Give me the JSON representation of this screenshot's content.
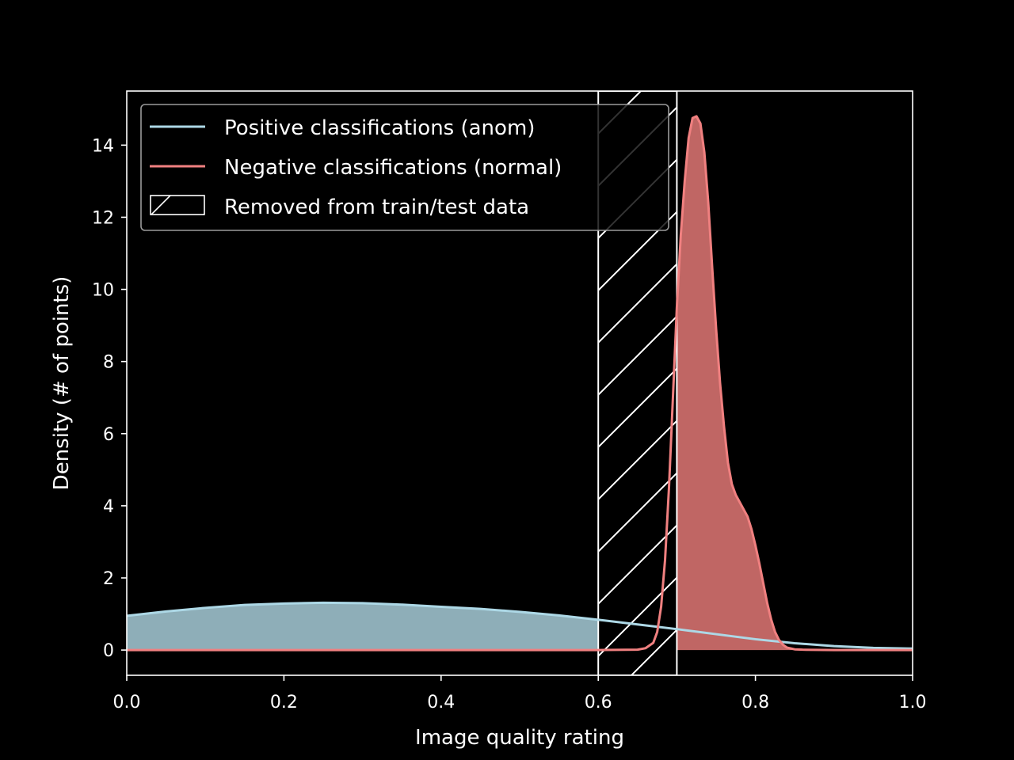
{
  "chart_data": {
    "type": "area",
    "title": "",
    "xlabel": "Image quality rating",
    "ylabel": "Density (# of points)",
    "xlim": [
      0.0,
      1.0
    ],
    "ylim": [
      -0.7,
      15.5
    ],
    "xticks": [
      0.0,
      0.2,
      0.4,
      0.6,
      0.8,
      1.0
    ],
    "xtick_labels": [
      "0.0",
      "0.2",
      "0.4",
      "0.6",
      "0.8",
      "1.0"
    ],
    "yticks": [
      0,
      2,
      4,
      6,
      8,
      10,
      12,
      14
    ],
    "ytick_labels": [
      "0",
      "2",
      "4",
      "6",
      "8",
      "10",
      "12",
      "14"
    ],
    "grid": false,
    "legend_position": "top-left",
    "background": "#000000",
    "foreground": "#ffffff",
    "removed_region": {
      "x_range": [
        0.6,
        0.7
      ],
      "label": "Removed from train/test data",
      "pattern": "diagonal-hatch",
      "color": "#ffffff"
    },
    "series": [
      {
        "name": "Positive classifications (anom)",
        "line_color": "#add8e6",
        "fill_color": "#8eaeb8",
        "fill_range": [
          0.0,
          0.6
        ],
        "x": [
          0.0,
          0.05,
          0.1,
          0.15,
          0.2,
          0.25,
          0.3,
          0.35,
          0.4,
          0.45,
          0.5,
          0.55,
          0.6,
          0.65,
          0.7,
          0.75,
          0.8,
          0.85,
          0.9,
          0.95,
          1.0
        ],
        "y": [
          0.95,
          1.07,
          1.17,
          1.25,
          1.29,
          1.31,
          1.3,
          1.26,
          1.2,
          1.14,
          1.06,
          0.96,
          0.84,
          0.71,
          0.58,
          0.44,
          0.3,
          0.19,
          0.11,
          0.06,
          0.04
        ]
      },
      {
        "name": "Negative classifications (normal)",
        "line_color": "#f08080",
        "fill_color": "#c06664",
        "fill_range": [
          0.7,
          1.0
        ],
        "x": [
          0.0,
          0.6,
          0.65,
          0.66,
          0.67,
          0.675,
          0.68,
          0.685,
          0.69,
          0.695,
          0.7,
          0.705,
          0.71,
          0.715,
          0.72,
          0.725,
          0.73,
          0.735,
          0.74,
          0.745,
          0.75,
          0.755,
          0.76,
          0.765,
          0.77,
          0.775,
          0.78,
          0.785,
          0.79,
          0.795,
          0.8,
          0.805,
          0.81,
          0.815,
          0.82,
          0.825,
          0.83,
          0.835,
          0.84,
          0.85,
          0.86,
          0.9,
          1.0
        ],
        "y": [
          0.0,
          0.0,
          0.01,
          0.05,
          0.2,
          0.5,
          1.2,
          2.5,
          4.5,
          7.0,
          9.5,
          11.5,
          13.0,
          14.2,
          14.75,
          14.8,
          14.6,
          13.8,
          12.4,
          10.6,
          8.9,
          7.4,
          6.2,
          5.2,
          4.6,
          4.3,
          4.1,
          3.9,
          3.7,
          3.35,
          2.9,
          2.4,
          1.85,
          1.3,
          0.85,
          0.5,
          0.28,
          0.15,
          0.07,
          0.02,
          0.01,
          0.0,
          0.0
        ]
      }
    ]
  }
}
